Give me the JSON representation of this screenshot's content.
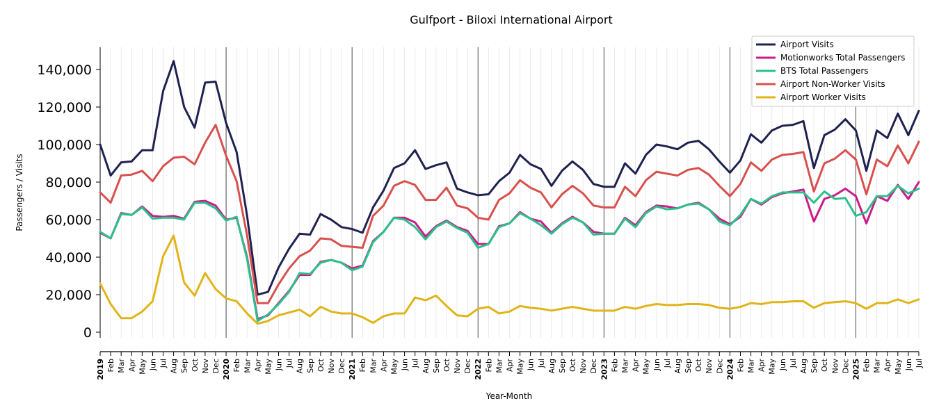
{
  "chart_data": {
    "type": "line",
    "title": "Gulfport - Biloxi International Airport",
    "xlabel": "Year-Month",
    "ylabel": "Passengers / Visits",
    "ylim": [
      0,
      150000
    ],
    "yticks": [
      0,
      20000,
      40000,
      60000,
      80000,
      100000,
      120000,
      140000
    ],
    "ytick_labels": [
      "0",
      "20,000",
      "40,000",
      "60,000",
      "80,000",
      "100,000",
      "120,000",
      "140,000"
    ],
    "grid": "vertical monthly lines, year separators",
    "legend_position": "top-right",
    "x": [
      "2019",
      "Feb",
      "Mar",
      "Apr",
      "May",
      "Jun",
      "Jul",
      "Aug",
      "Sep",
      "Oct",
      "Nov",
      "Dec",
      "2020",
      "Feb",
      "Mar",
      "Apr",
      "May",
      "Jun",
      "Jul",
      "Aug",
      "Sep",
      "Oct",
      "Nov",
      "Dec",
      "2021",
      "Feb",
      "Mar",
      "Apr",
      "May",
      "Jun",
      "Jul",
      "Aug",
      "Sep",
      "Oct",
      "Nov",
      "Dec",
      "2022",
      "Feb",
      "Mar",
      "Apr",
      "May",
      "Jun",
      "Jul",
      "Aug",
      "Sep",
      "Oct",
      "Nov",
      "Dec",
      "2023",
      "Feb",
      "Mar",
      "Apr",
      "May",
      "Jun",
      "Jul",
      "Aug",
      "Sep",
      "Oct",
      "Nov",
      "Dec",
      "2024",
      "Feb",
      "Mar",
      "Apr",
      "May",
      "Jun",
      "Jul",
      "Aug",
      "Sep",
      "Oct",
      "Nov",
      "Dec",
      "2025",
      "Feb",
      "Mar",
      "Apr",
      "May",
      "Jun",
      "Jul"
    ],
    "series": [
      {
        "name": "Airport Visits",
        "color": "#1f2150",
        "values": [
          100000,
          83500,
          90500,
          91000,
          97000,
          97000,
          128500,
          144500,
          120000,
          109000,
          133000,
          133500,
          111500,
          96000,
          62000,
          20000,
          21500,
          34500,
          44500,
          52500,
          52000,
          63000,
          60000,
          56000,
          55000,
          53000,
          66500,
          75500,
          87500,
          90000,
          97000,
          87000,
          89000,
          90500,
          76500,
          74500,
          73000,
          73500,
          80500,
          85000,
          94500,
          89500,
          87000,
          78000,
          86000,
          91000,
          86500,
          79000,
          77500,
          77500,
          90000,
          84500,
          94500,
          100000,
          99000,
          97500,
          101000,
          102000,
          97500,
          91000,
          85000,
          91500,
          105500,
          101000,
          107500,
          110000,
          110500,
          112500,
          87500,
          105000,
          108000,
          113500,
          107500,
          86000,
          107500,
          103500,
          116500,
          105000,
          118000
        ]
      },
      {
        "name": "Motionworks Total Passengers",
        "color": "#cc1a8a",
        "values": [
          53000,
          50000,
          63500,
          62500,
          67000,
          62000,
          61500,
          62000,
          60500,
          69500,
          70000,
          67500,
          60000,
          61000,
          40000,
          7000,
          9000,
          15500,
          22000,
          30500,
          30500,
          37500,
          38500,
          37000,
          34000,
          35500,
          48500,
          53500,
          61000,
          61000,
          58500,
          51000,
          56500,
          59500,
          56000,
          54000,
          47000,
          47000,
          56500,
          58000,
          64000,
          60500,
          59000,
          53000,
          58000,
          61500,
          58500,
          53500,
          52500,
          52500,
          61000,
          57000,
          64000,
          67500,
          67000,
          66000,
          68000,
          69000,
          65500,
          60500,
          57500,
          61500,
          71000,
          68000,
          72000,
          74000,
          75000,
          76000,
          59000,
          71000,
          73000,
          76500,
          72500,
          58000,
          72500,
          70000,
          78500,
          71000,
          80000
        ]
      },
      {
        "name": "BTS Total Passengers",
        "color": "#2bc08a",
        "values": [
          53500,
          50000,
          63000,
          62500,
          66500,
          60500,
          61000,
          61000,
          60000,
          69000,
          69000,
          66000,
          59500,
          61500,
          39000,
          6000,
          9500,
          15000,
          21500,
          31500,
          31000,
          37000,
          38500,
          37000,
          33000,
          35000,
          48000,
          53500,
          61000,
          60000,
          56000,
          49500,
          56000,
          59000,
          55500,
          53000,
          45000,
          47000,
          56000,
          58000,
          63500,
          60500,
          57000,
          52500,
          57500,
          61000,
          58500,
          52000,
          52500,
          52500,
          60500,
          56000,
          63500,
          67000,
          65500,
          66000,
          68000,
          68500,
          65500,
          59000,
          57000,
          62500,
          71000,
          68500,
          72500,
          74500,
          74500,
          74500,
          69000,
          75000,
          71000,
          71500,
          62000,
          64000,
          72500,
          72500,
          78000,
          74000,
          76500
        ]
      },
      {
        "name": "Airport Non-Worker Visits",
        "color": "#d8504d",
        "values": [
          74500,
          69000,
          83500,
          84000,
          86000,
          80500,
          88500,
          93000,
          93500,
          89500,
          101000,
          110500,
          94000,
          80500,
          51500,
          15500,
          15500,
          25500,
          34000,
          40500,
          43500,
          50000,
          49500,
          46000,
          45500,
          45000,
          62000,
          67500,
          78000,
          80500,
          78500,
          70500,
          70500,
          77000,
          67500,
          66000,
          61000,
          60000,
          70500,
          74000,
          81000,
          77000,
          74500,
          66500,
          73500,
          78000,
          74000,
          67500,
          66500,
          66500,
          77500,
          72500,
          81000,
          85500,
          84500,
          83500,
          86500,
          87500,
          84000,
          78000,
          72500,
          79000,
          90500,
          86000,
          92000,
          94500,
          95000,
          96000,
          75000,
          90000,
          92500,
          97000,
          92000,
          73500,
          92000,
          88500,
          99500,
          90000,
          101500
        ]
      },
      {
        "name": "Airport Worker Visits",
        "color": "#e0b418",
        "values": [
          26000,
          15000,
          7500,
          7500,
          11000,
          16500,
          40500,
          51500,
          26500,
          19500,
          31500,
          23000,
          18000,
          16500,
          10000,
          4500,
          6000,
          9000,
          10500,
          12000,
          8500,
          13500,
          11000,
          10000,
          10000,
          8000,
          5000,
          8500,
          10000,
          10000,
          18500,
          17000,
          19500,
          14000,
          9000,
          8500,
          12500,
          13500,
          10000,
          11000,
          14000,
          13000,
          12500,
          11500,
          12500,
          13500,
          12500,
          11500,
          11500,
          11500,
          13500,
          12500,
          14000,
          15000,
          14500,
          14500,
          15000,
          15000,
          14500,
          13000,
          12500,
          13500,
          15500,
          15000,
          16000,
          16000,
          16500,
          16500,
          13000,
          15500,
          16000,
          16500,
          15500,
          12500,
          15500,
          15500,
          17500,
          15500,
          17500
        ]
      }
    ]
  }
}
